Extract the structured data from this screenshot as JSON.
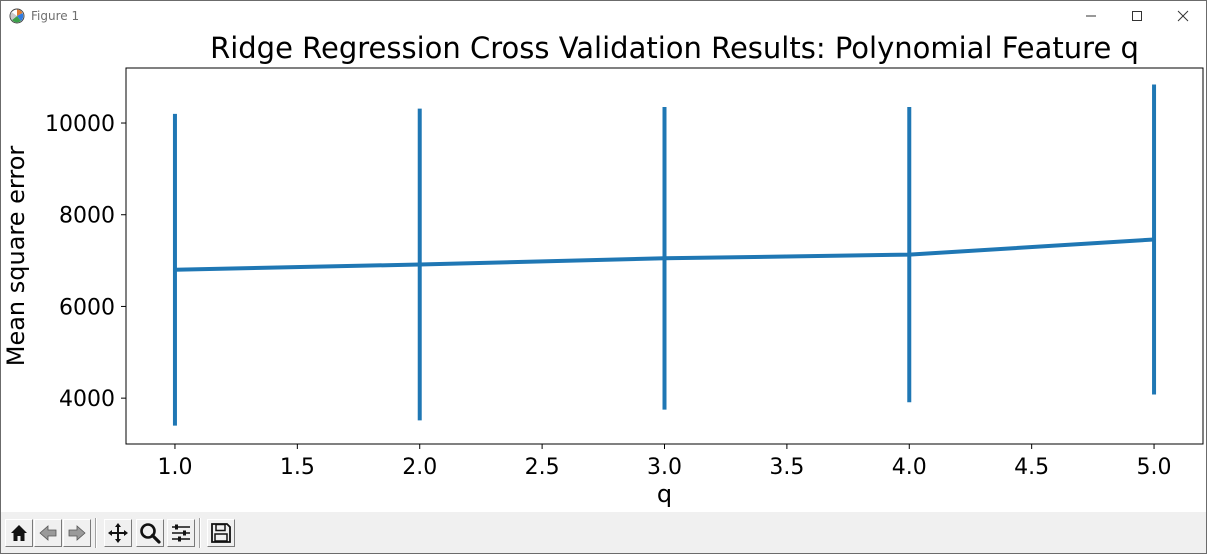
{
  "window": {
    "title": "Figure 1",
    "icon": "matplotlib-figure-icon",
    "controls": [
      "minimize-icon",
      "maximize-icon",
      "close-icon"
    ]
  },
  "toolbar": {
    "buttons": [
      {
        "icon": "home-icon",
        "tooltip": "Reset original view"
      },
      {
        "icon": "back-arrow-icon",
        "tooltip": "Back"
      },
      {
        "icon": "forward-arrow-icon",
        "tooltip": "Forward"
      },
      {
        "icon": "pan-icon",
        "tooltip": "Pan"
      },
      {
        "icon": "zoom-icon",
        "tooltip": "Zoom"
      },
      {
        "icon": "configure-subplots-icon",
        "tooltip": "Configure subplots"
      },
      {
        "icon": "save-icon",
        "tooltip": "Save"
      }
    ]
  },
  "chart_data": {
    "type": "line",
    "title": "Ridge Regression Cross Validation Results: Polynomial Feature q",
    "xlabel": "q",
    "ylabel": "Mean square error",
    "x": [
      1,
      2,
      3,
      4,
      5
    ],
    "series": [
      {
        "values": [
          6800,
          6915,
          7050,
          7130,
          7460
        ],
        "yerr": [
          3400,
          3400,
          3300,
          3220,
          3380
        ],
        "color": "#1f77b4"
      }
    ],
    "xlim": [
      0.8,
      5.2
    ],
    "ylim": [
      3000,
      11200
    ],
    "xticks": [
      1.0,
      1.5,
      2.0,
      2.5,
      3.0,
      3.5,
      4.0,
      4.5,
      5.0
    ],
    "xtick_labels": [
      "1.0",
      "1.5",
      "2.0",
      "2.5",
      "3.0",
      "3.5",
      "4.0",
      "4.5",
      "5.0"
    ],
    "yticks": [
      4000,
      6000,
      8000,
      10000
    ],
    "ytick_labels": [
      "4000",
      "6000",
      "8000",
      "10000"
    ],
    "grid": false,
    "legend": "none"
  }
}
